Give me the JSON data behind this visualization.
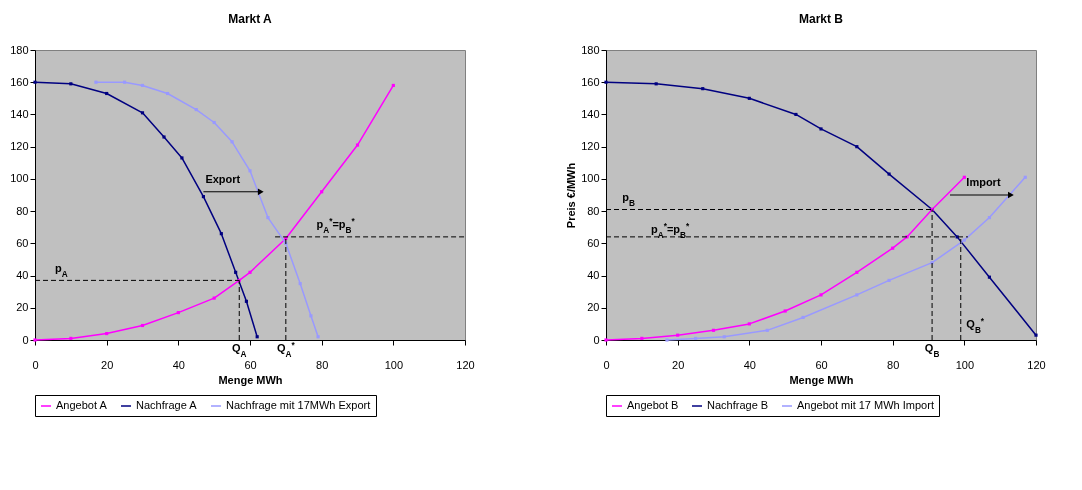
{
  "chart_data": [
    {
      "type": "line",
      "title": "Markt A",
      "xlabel": "Menge MWh",
      "xlim": [
        0,
        120
      ],
      "xticks": [
        0,
        20,
        40,
        60,
        80,
        100,
        120
      ],
      "ylim": [
        0,
        180
      ],
      "yticks": [
        0,
        20,
        40,
        60,
        80,
        100,
        120,
        140,
        160,
        180
      ],
      "legend": "bottom",
      "marker": "square",
      "series": [
        {
          "name": "Angebot A",
          "color": "#ff00ff",
          "x": [
            0,
            10,
            20,
            30,
            40,
            50,
            57,
            60,
            70,
            80,
            90,
            100
          ],
          "values": [
            0,
            1,
            4,
            9,
            17,
            26,
            37,
            42,
            63,
            92,
            121,
            158
          ]
        },
        {
          "name": "Nachfrage A",
          "color": "#000080",
          "x": [
            0,
            10,
            20,
            30,
            36,
            41,
            47,
            52,
            56,
            59,
            62
          ],
          "values": [
            160,
            159,
            153,
            141,
            126,
            113,
            89,
            66,
            42,
            24,
            2
          ]
        },
        {
          "name": "Nachfrage mit 17MWh Export",
          "color": "#9999ff",
          "x": [
            17,
            25,
            30,
            37,
            45,
            50,
            55,
            60,
            65,
            70,
            74,
            77,
            79
          ],
          "values": [
            160,
            160,
            158,
            153,
            143,
            135,
            123,
            105,
            76,
            60,
            35,
            15,
            2
          ]
        },
        {
          "color": "#000000",
          "line_style": "dashed",
          "marker": "none",
          "x": [
            0,
            57
          ],
          "values": [
            37,
            37
          ]
        },
        {
          "color": "#000000",
          "line_style": "dashed",
          "marker": "none",
          "x": [
            57,
            57
          ],
          "values": [
            0,
            37
          ]
        },
        {
          "color": "#000000",
          "line_style": "dashed",
          "marker": "none",
          "x": [
            70,
            70
          ],
          "values": [
            0,
            64
          ]
        },
        {
          "color": "#000000",
          "line_style": "dashed",
          "marker": "none",
          "x": [
            67,
            120
          ],
          "values": [
            64,
            64
          ]
        },
        {
          "color": "#000000",
          "line_style": "solid",
          "marker": "triangle",
          "x": [
            47,
            63
          ],
          "values": [
            92,
            92
          ]
        }
      ],
      "annotations": [
        {
          "text": "Export",
          "x": 47,
          "y": 95
        },
        {
          "text": "p$_{A}$",
          "x": 5,
          "y": 40
        },
        {
          "text": "Q$_{A}$",
          "x": 57,
          "y": 0
        },
        {
          "text": "Q$_{A}$$^{*}$",
          "x": 70,
          "y": 0
        },
        {
          "text": "p$_{A}$$^{*}$=p$_{B}$$^{*}$",
          "x": 78,
          "y": 67
        }
      ]
    },
    {
      "type": "line",
      "title": "Markt B",
      "xlabel": "Menge MWh",
      "ylabel": "Preis €/MWh",
      "xlim": [
        0,
        120
      ],
      "xticks": [
        0,
        20,
        40,
        60,
        80,
        100,
        120
      ],
      "ylim": [
        0,
        180
      ],
      "yticks": [
        0,
        20,
        40,
        60,
        80,
        100,
        120,
        140,
        160,
        180
      ],
      "legend": "bottom",
      "marker": "square",
      "series": [
        {
          "name": "Angebot B",
          "color": "#ff00ff",
          "x": [
            0,
            10,
            20,
            30,
            40,
            50,
            60,
            70,
            80,
            84,
            91,
            100
          ],
          "values": [
            0,
            1,
            3,
            6,
            10,
            18,
            28,
            42,
            57,
            64,
            81,
            101
          ]
        },
        {
          "name": "Nachfrage B",
          "color": "#000080",
          "x": [
            0,
            14,
            27,
            40,
            53,
            60,
            70,
            79,
            91,
            98,
            107,
            120
          ],
          "values": [
            160,
            159,
            156,
            150,
            140,
            131,
            120,
            103,
            81,
            64,
            39,
            3
          ]
        },
        {
          "name": "Angebot mit 17 MWh Import",
          "color": "#9999ff",
          "x": [
            17,
            25,
            33,
            45,
            55,
            70,
            79,
            91,
            100,
            107,
            117
          ],
          "values": [
            0,
            1,
            2,
            6,
            14,
            28,
            37,
            48,
            62,
            76,
            101
          ]
        },
        {
          "color": "#000000",
          "line_style": "dashed",
          "marker": "none",
          "x": [
            0,
            91
          ],
          "values": [
            81,
            81
          ]
        },
        {
          "color": "#000000",
          "line_style": "dashed",
          "marker": "none",
          "x": [
            91,
            91
          ],
          "values": [
            0,
            81
          ]
        },
        {
          "color": "#000000",
          "line_style": "dashed",
          "marker": "none",
          "x": [
            99,
            99
          ],
          "values": [
            0,
            64
          ]
        },
        {
          "color": "#000000",
          "line_style": "dashed",
          "marker": "none",
          "x": [
            0,
            101
          ],
          "values": [
            64,
            64
          ]
        },
        {
          "color": "#000000",
          "line_style": "solid",
          "marker": "triangle",
          "x": [
            96,
            113
          ],
          "values": [
            90,
            90
          ]
        }
      ],
      "annotations": [
        {
          "text": "Import",
          "x": 100,
          "y": 93
        },
        {
          "text": "p$_{B}$",
          "x": 4,
          "y": 84
        },
        {
          "text": "Q$_{B}$",
          "x": 91,
          "y": 0
        },
        {
          "text": "Q$_{B}$$^{*}$",
          "x": 100,
          "y": 5
        },
        {
          "text": "p$_{A}$$^{*}$=p$_{B}$$^{*}$",
          "x": 12,
          "y": 64
        }
      ]
    }
  ]
}
